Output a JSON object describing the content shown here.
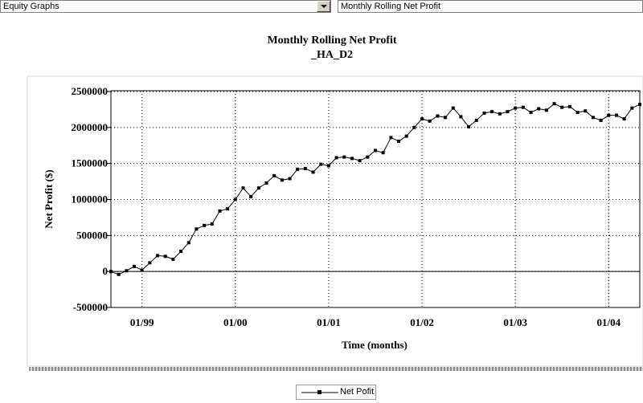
{
  "toolbar": {
    "graph_type_value": "Equity Graphs",
    "graph_name_value": "Monthly Rolling Net Profit",
    "dropdown_icon": "chevron-down-icon"
  },
  "chart_data": {
    "type": "line",
    "title": "Monthly Rolling Net Profit",
    "subtitle": "_HA_D2",
    "xlabel": "Time (months)",
    "ylabel": "Net Profit ($)",
    "ylim": [
      -500000,
      2500000
    ],
    "y_ticks": [
      -500000,
      0,
      500000,
      1000000,
      1500000,
      2000000,
      2500000
    ],
    "y_tick_labels": [
      "-500000",
      "0",
      "500000",
      "1000000",
      "1500000",
      "2000000",
      "2500000"
    ],
    "x_tick_labels": [
      "01/99",
      "01/00",
      "01/01",
      "01/02",
      "01/03",
      "01/04"
    ],
    "grid": true,
    "legend_position": "bottom-center",
    "series": [
      {
        "name": "Net Pofit",
        "color": "#000000",
        "marker": "square",
        "values": [
          0,
          -40000,
          10000,
          70000,
          20000,
          120000,
          220000,
          210000,
          170000,
          280000,
          400000,
          590000,
          640000,
          660000,
          840000,
          870000,
          1000000,
          1160000,
          1040000,
          1160000,
          1230000,
          1330000,
          1270000,
          1290000,
          1420000,
          1430000,
          1380000,
          1490000,
          1470000,
          1580000,
          1590000,
          1570000,
          1540000,
          1590000,
          1680000,
          1650000,
          1860000,
          1810000,
          1880000,
          2000000,
          2120000,
          2090000,
          2160000,
          2140000,
          2270000,
          2150000,
          2010000,
          2100000,
          2200000,
          2220000,
          2190000,
          2220000,
          2270000,
          2280000,
          2210000,
          2260000,
          2240000,
          2330000,
          2280000,
          2290000,
          2210000,
          2230000,
          2140000,
          2100000,
          2170000,
          2170000,
          2120000,
          2270000,
          2320000
        ]
      }
    ]
  }
}
